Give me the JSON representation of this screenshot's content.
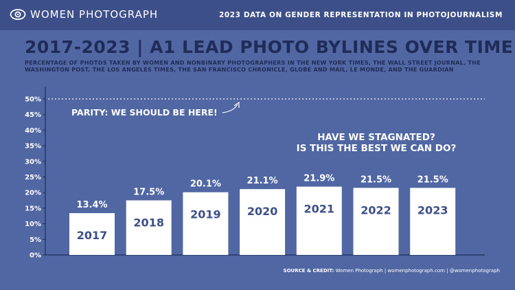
{
  "header": {
    "brand": "WOMEN PHOTOGRAPH",
    "right_title": "2023 DATA ON GENDER REPRESENTATION IN PHOTOJOURNALISM"
  },
  "chart_data": {
    "type": "bar",
    "title": "2017-2023  | A1 LEAD PHOTO BYLINES OVER TIME",
    "subtitle": "PERCENTAGE OF PHOTOS TAKEN BY WOMEN AND NONBINARY PHOTOGRAPHERS IN THE NEW YORK TIMES, THE WALL STREET JOURNAL, THE WASHINGTON POST, THE LOS ANGELES TIMES, THE SAN FRANCISCO CHRONICLE, GLOBE AND MAIL, LE MONDE, AND THE GUARDIAN",
    "categories": [
      "2017",
      "2018",
      "2019",
      "2020",
      "2021",
      "2022",
      "2023"
    ],
    "values": [
      13.4,
      17.5,
      20.1,
      21.1,
      21.9,
      21.5,
      21.5
    ],
    "data_labels": [
      "13.4%",
      "17.5%",
      "20.1%",
      "21.1%",
      "21.9%",
      "21.5%",
      "21.5%"
    ],
    "y_ticks": [
      0,
      5,
      10,
      15,
      20,
      25,
      30,
      35,
      40,
      45,
      50
    ],
    "y_tick_labels": [
      "0%",
      "5%",
      "10%",
      "15%",
      "20%",
      "25%",
      "30%",
      "35%",
      "40%",
      "45%",
      "50%"
    ],
    "ylim": [
      0,
      50
    ],
    "reference_line": {
      "value": 50,
      "label": "PARITY: WE SHOULD BE HERE!"
    },
    "annotation": [
      "HAVE WE STAGNATED?",
      "IS THIS THE BEST WE CAN DO?"
    ],
    "bar_color": "#ffffff",
    "year_text_color": "#3d4f88"
  },
  "footer": {
    "source_label": "SOURCE & CREDIT:",
    "source_text": " Women Photograph  |  womenphotograph.com  |  @womenphotograph"
  },
  "colors": {
    "background": "#5067a3",
    "header_bar": "#3d4f88",
    "title_text": "#1f2c57"
  }
}
